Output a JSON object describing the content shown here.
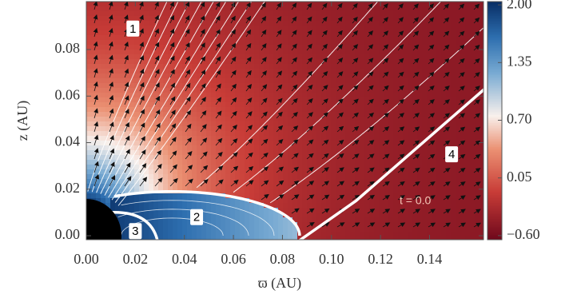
{
  "chart_data": {
    "type": "heatmap",
    "xlabel": "ϖ (AU)",
    "ylabel": "z (AU)",
    "xlim": [
      0,
      0.162
    ],
    "ylim": [
      -0.0017,
      0.1006
    ],
    "xticks": [
      {
        "value": 0,
        "label": "0.00"
      },
      {
        "value": 0.02,
        "label": "0.02"
      },
      {
        "value": 0.04,
        "label": "0.04"
      },
      {
        "value": 0.06,
        "label": "0.06"
      },
      {
        "value": 0.08,
        "label": "0.08"
      },
      {
        "value": 0.1,
        "label": "0.10"
      },
      {
        "value": 0.12,
        "label": "0.12"
      },
      {
        "value": 0.14,
        "label": "0.14"
      }
    ],
    "yticks": [
      {
        "value": 0,
        "label": "0.00"
      },
      {
        "value": 0.02,
        "label": "0.02"
      },
      {
        "value": 0.04,
        "label": "0.04"
      },
      {
        "value": 0.06,
        "label": "0.06"
      },
      {
        "value": 0.08,
        "label": "0.08"
      }
    ],
    "colorbar": {
      "colormap": "RdBu",
      "lim": [
        -0.646,
        2.037
      ],
      "ticks": [
        {
          "value": 2.0,
          "label": "2.00"
        },
        {
          "value": 1.35,
          "label": "1.35"
        },
        {
          "value": 0.7,
          "label": "0.70"
        },
        {
          "value": 0.05,
          "label": "0.05"
        },
        {
          "value": -0.6,
          "label": "−0.60"
        }
      ]
    },
    "region_labels": [
      "1",
      "2",
      "3",
      "4"
    ],
    "time_label": "t =  0.0"
  }
}
